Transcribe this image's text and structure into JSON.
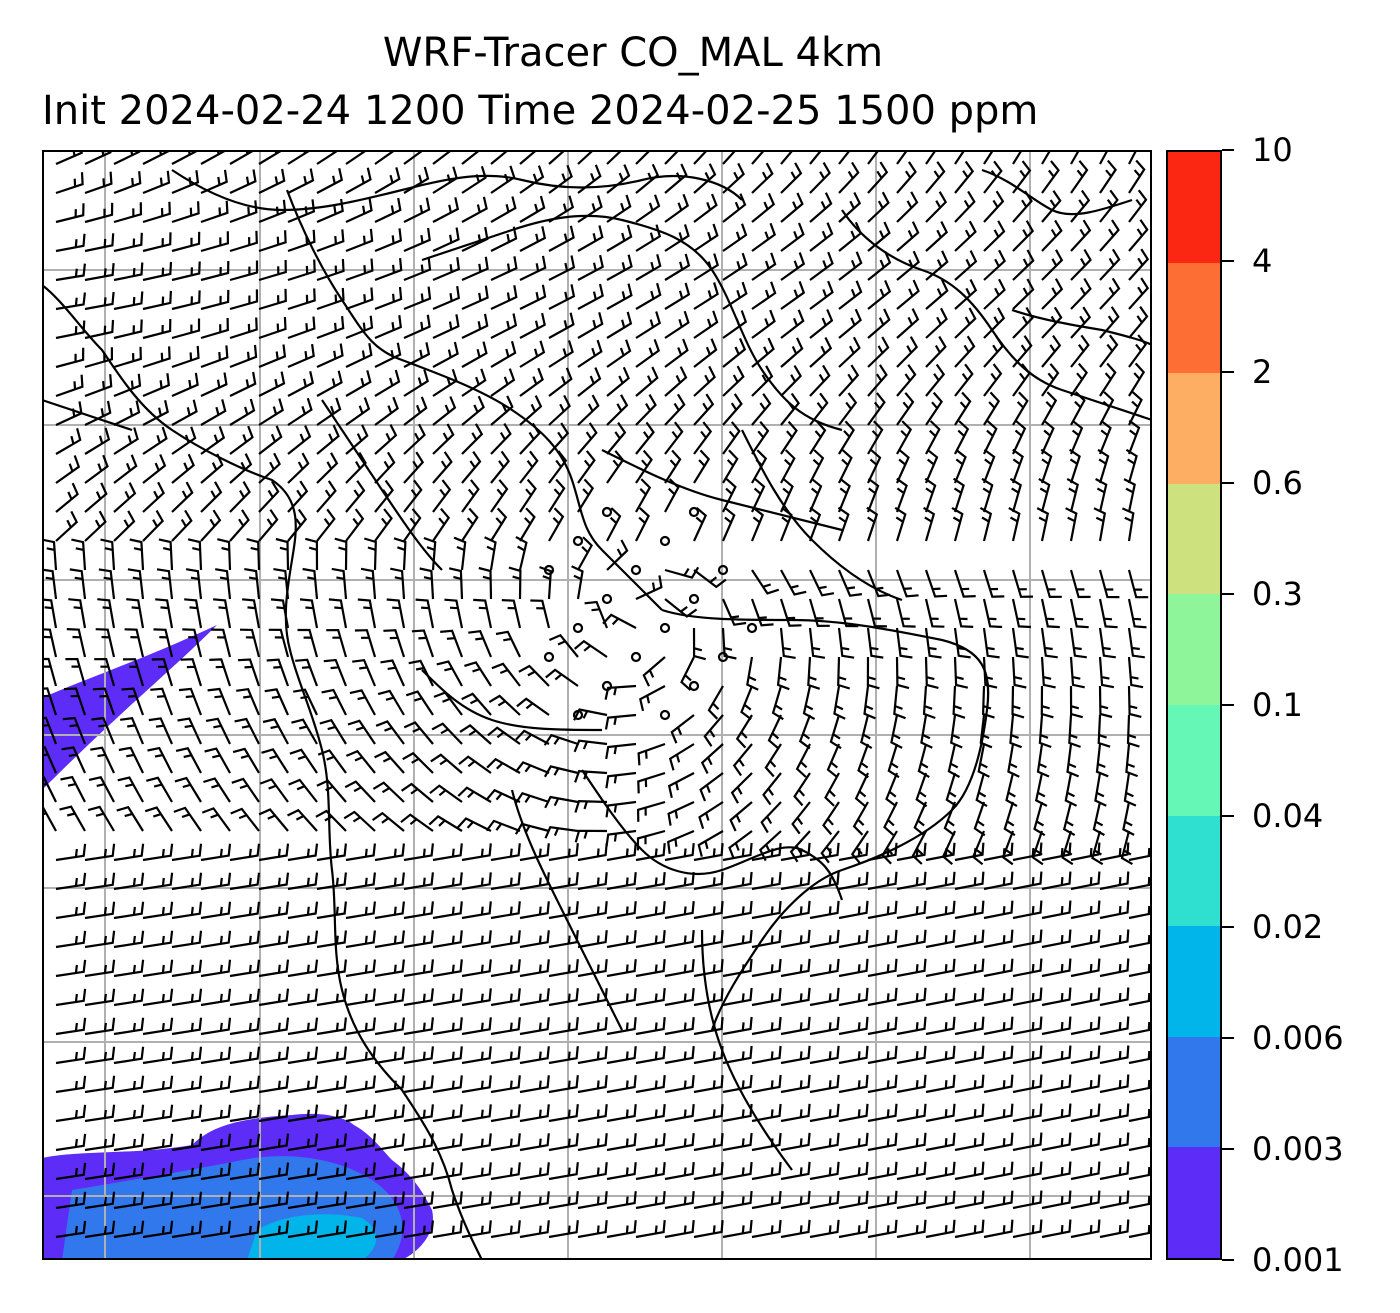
{
  "title": {
    "line1": "WRF-Tracer CO_MAL 4km",
    "line2": "Init 2024-02-24 1200 Time 2024-02-25 1500 ppm"
  },
  "colorbar": {
    "levels": [
      "0.001",
      "0.003",
      "0.006",
      "0.02",
      "0.04",
      "0.1",
      "0.3",
      "0.6",
      "2",
      "4",
      "10"
    ],
    "colors": [
      "#5d2cf7",
      "#3178ec",
      "#01b4ea",
      "#2fdfcf",
      "#64f7b5",
      "#8ff59a",
      "#cee17f",
      "#fdae62",
      "#fd6e35",
      "#fb2712"
    ]
  },
  "map": {
    "gridlines": "on",
    "gridline_color": "#b0b0b0",
    "wind_barbs": "on",
    "coastlines_and_borders": "on",
    "tracer_field_color_low": "#5d2cf7"
  }
}
